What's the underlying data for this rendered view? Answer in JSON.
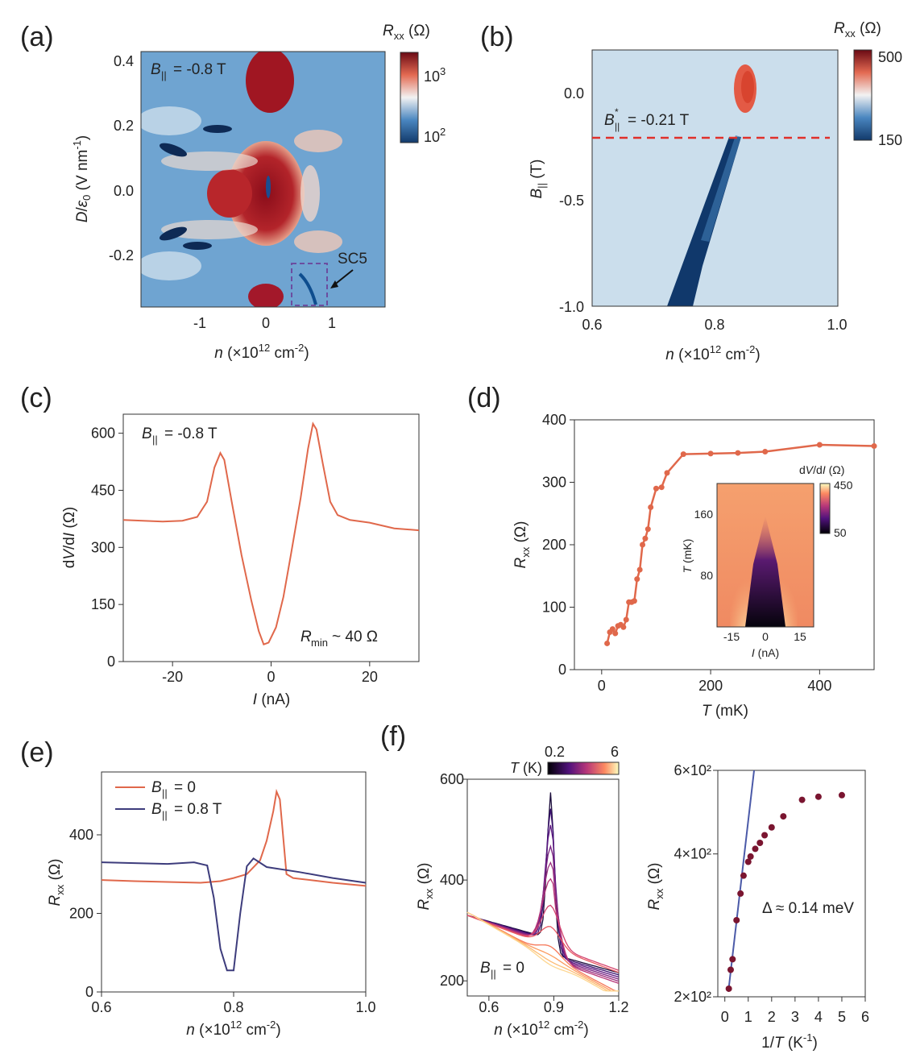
{
  "panels": {
    "a": "(a)",
    "b": "(b)",
    "c": "(c)",
    "d": "(d)",
    "e": "(e)",
    "f": "(f)"
  },
  "colors": {
    "trace": "#e0684b",
    "trace_dark": "#3d3c7c",
    "map_low": "#1c4f8a",
    "map_high": "#8a0d1a",
    "dashed": "#e0302a",
    "box": "#6b4ea0",
    "point": "#7a1530"
  },
  "chart_data": [
    {
      "id": "a",
      "type": "heatmap",
      "xlabel": "n (×10¹² cm⁻²)",
      "ylabel": "D/ε₀ (V nm⁻¹)",
      "xticks": [
        "-1",
        "0",
        "1"
      ],
      "yticks": [
        "0.4",
        "0.2",
        "0.0",
        "-0.2"
      ],
      "xlim": [
        -1.9,
        1.75
      ],
      "ylim": [
        -0.36,
        0.42
      ],
      "colorbar": {
        "label": "Rxx (Ω)",
        "ticks": [
          "10³",
          "10²"
        ],
        "scale": "log"
      },
      "annotations": [
        "B|| = -0.8 T",
        "SC5"
      ]
    },
    {
      "id": "b",
      "type": "heatmap",
      "xlabel": "n (×10¹² cm⁻²)",
      "ylabel": "B|| (T)",
      "xticks": [
        "0.6",
        "0.8",
        "1.0"
      ],
      "yticks": [
        "0.0",
        "-0.5",
        "-1.0"
      ],
      "xlim": [
        0.6,
        1.0
      ],
      "ylim": [
        -1.0,
        0.2
      ],
      "colorbar": {
        "label": "Rxx (Ω)",
        "ticks": [
          "500",
          "150"
        ],
        "range": [
          150,
          500
        ]
      },
      "annotations": [
        "B*|| = -0.21 T"
      ],
      "dashed_line_y": -0.21
    },
    {
      "id": "c",
      "type": "line",
      "xlabel": "I (nA)",
      "ylabel": "dV/dI (Ω)",
      "xticks": [
        "-20",
        "0",
        "20"
      ],
      "yticks": [
        "0",
        "150",
        "300",
        "450",
        "600"
      ],
      "xlim": [
        -30,
        30
      ],
      "ylim": [
        0,
        650
      ],
      "annotations": [
        "B|| = -0.8 T",
        "Rmin ~ 40 Ω"
      ],
      "series": [
        {
          "x": [
            -30,
            -26,
            -22,
            -18,
            -15,
            -13,
            -11.5,
            -10.3,
            -9.5,
            -8,
            -6,
            -4,
            -2.5,
            -1.5,
            -0.5,
            1,
            2.5,
            4,
            6,
            7.5,
            8.5,
            9.2,
            10.5,
            12,
            13.5,
            16,
            20,
            25,
            30
          ],
          "values": [
            372,
            370,
            368,
            370,
            380,
            420,
            510,
            548,
            530,
            420,
            280,
            160,
            80,
            45,
            50,
            90,
            170,
            280,
            430,
            560,
            625,
            610,
            520,
            420,
            385,
            372,
            365,
            350,
            345
          ]
        }
      ]
    },
    {
      "id": "d",
      "type": "line",
      "xlabel": "T (mK)",
      "ylabel": "Rxx (Ω)",
      "xticks": [
        "0",
        "200",
        "400"
      ],
      "yticks": [
        "0",
        "100",
        "200",
        "300",
        "400"
      ],
      "xlim": [
        -50,
        500
      ],
      "ylim": [
        0,
        400
      ],
      "series": [
        {
          "x": [
            10,
            15,
            20,
            25,
            30,
            35,
            40,
            45,
            50,
            55,
            60,
            65,
            70,
            75,
            80,
            85,
            90,
            100,
            110,
            120,
            150,
            200,
            250,
            300,
            400,
            500
          ],
          "values": [
            42,
            60,
            65,
            58,
            70,
            72,
            68,
            80,
            108,
            108,
            110,
            145,
            160,
            200,
            210,
            225,
            260,
            290,
            292,
            315,
            345,
            346,
            347,
            349,
            360,
            358
          ]
        }
      ],
      "inset": {
        "type": "heatmap",
        "xlabel": "I (nA)",
        "ylabel": "T (mK)",
        "xticks": [
          "-15",
          "0",
          "15"
        ],
        "yticks": [
          "160",
          "80"
        ],
        "colorbar": {
          "label": "dV/dI (Ω)",
          "ticks": [
            "450",
            "50"
          ],
          "range": [
            50,
            450
          ]
        }
      }
    },
    {
      "id": "e",
      "type": "line",
      "xlabel": "n (×10¹² cm⁻²)",
      "ylabel": "Rxx (Ω)",
      "xticks": [
        "0.6",
        "0.8",
        "1.0"
      ],
      "yticks": [
        "0",
        "200",
        "400"
      ],
      "xlim": [
        0.6,
        1.0
      ],
      "ylim": [
        0,
        560
      ],
      "series": [
        {
          "name": "B|| = 0",
          "x": [
            0.6,
            0.65,
            0.7,
            0.75,
            0.78,
            0.8,
            0.82,
            0.84,
            0.85,
            0.86,
            0.865,
            0.87,
            0.88,
            0.89,
            0.9,
            0.95,
            1.0
          ],
          "values": [
            285,
            282,
            280,
            278,
            282,
            290,
            300,
            335,
            385,
            460,
            510,
            490,
            300,
            290,
            288,
            278,
            270
          ]
        },
        {
          "name": "B|| = 0.8 T",
          "x": [
            0.6,
            0.65,
            0.7,
            0.74,
            0.76,
            0.77,
            0.78,
            0.79,
            0.8,
            0.81,
            0.82,
            0.83,
            0.85,
            0.9,
            0.95,
            1.0
          ],
          "values": [
            330,
            328,
            326,
            330,
            322,
            240,
            110,
            55,
            55,
            200,
            320,
            340,
            318,
            305,
            290,
            278
          ]
        }
      ]
    },
    {
      "id": "f1",
      "type": "line",
      "xlabel": "n (×10¹² cm⁻²)",
      "ylabel": "Rxx (Ω)",
      "xticks": [
        "0.6",
        "0.9",
        "1.2"
      ],
      "yticks": [
        "200",
        "400",
        "600"
      ],
      "xlim": [
        0.5,
        1.2
      ],
      "ylim": [
        170,
        600
      ],
      "colorbar": {
        "label": "T (K)",
        "ticks": [
          "0.2",
          "6"
        ]
      },
      "annotations": [
        "B|| = 0"
      ]
    },
    {
      "id": "f2",
      "type": "scatter",
      "xlabel": "1/T (K⁻¹)",
      "ylabel": "Rxx (Ω)",
      "xticks": [
        "0",
        "1",
        "2",
        "3",
        "4",
        "5",
        "6"
      ],
      "yticks": [
        "6×10²",
        "4×10²",
        "2×10²"
      ],
      "xlim": [
        -0.3,
        6
      ],
      "ylim": [
        200,
        600
      ],
      "log_y": true,
      "annotations": [
        "Δ ≈ 0.14 meV"
      ],
      "series": [
        {
          "x": [
            0.17,
            0.25,
            0.33,
            0.5,
            0.67,
            0.8,
            1.0,
            1.1,
            1.3,
            1.5,
            1.7,
            2.0,
            2.5,
            3.3,
            4.0,
            5.0
          ],
          "values": [
            208,
            228,
            240,
            290,
            330,
            360,
            385,
            395,
            410,
            422,
            438,
            455,
            480,
            520,
            528,
            532
          ]
        }
      ]
    }
  ],
  "text": {
    "a_field": "= -0.8 T",
    "b_field": "= -0.21 T",
    "c_field": "= -0.8 T",
    "c_rmin": "~ 40 Ω",
    "e_leg1": "= 0",
    "e_leg2": "= 0.8 T",
    "f_field": "= 0",
    "f_gap": "Δ ≈ 0.14 meV",
    "sc5": "SC5"
  }
}
